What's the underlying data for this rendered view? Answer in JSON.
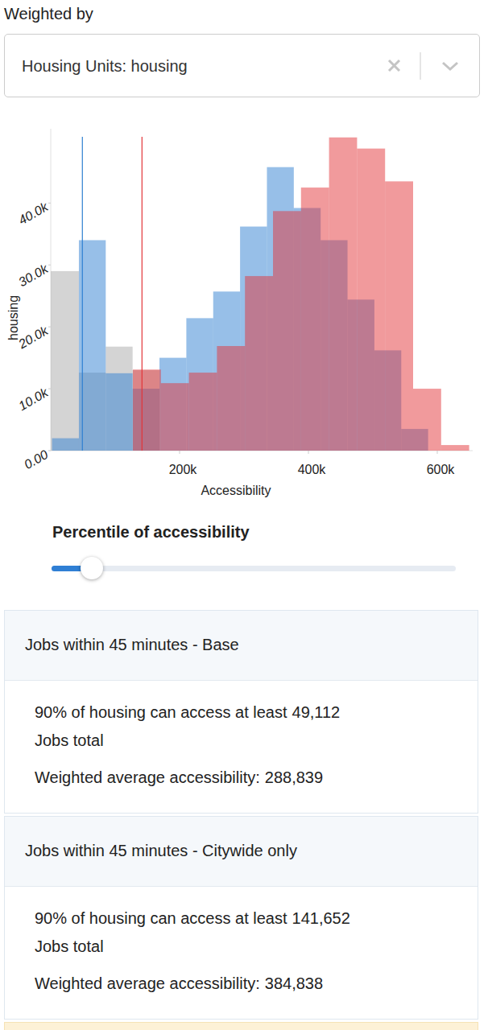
{
  "header": {
    "label": "Weighted by",
    "select": "Housing Units: housing"
  },
  "chart_data": {
    "type": "histogram",
    "x_label": "Accessibility",
    "y_label": "housing",
    "xlim": [
      0,
      655000
    ],
    "ylim": [
      0,
      52000
    ],
    "xticks": [
      {
        "value": 200000,
        "label": "200k"
      },
      {
        "value": 400000,
        "label": "400k"
      },
      {
        "value": 600000,
        "label": "600k"
      }
    ],
    "yticks": [
      {
        "value": 0,
        "label": "0.00"
      },
      {
        "value": 10000,
        "label": "10.0k"
      },
      {
        "value": 20000,
        "label": "20.0k"
      },
      {
        "value": 30000,
        "label": "30.0k"
      },
      {
        "value": 40000,
        "label": "40.0k"
      }
    ],
    "series": [
      {
        "color": "#2f80d1",
        "bins": [
          2000,
          43700,
          85400,
          127100,
          168800,
          210500,
          252200,
          293900,
          335600,
          377300,
          419000,
          460700,
          502400,
          544100,
          585800
        ],
        "values": [
          2000,
          34000,
          12500,
          10000,
          15000,
          21400,
          25700,
          36200,
          45800,
          39200,
          34000,
          24400,
          16200,
          3500
        ]
      },
      {
        "color": "#e33539",
        "bins": [
          127500,
          171000,
          214500,
          258000,
          301500,
          345000,
          388500,
          432000,
          475500,
          519000,
          562500,
          606000,
          649500
        ],
        "values": [
          13100,
          10900,
          12600,
          16900,
          28200,
          38700,
          42500,
          50600,
          48800,
          43500,
          10000,
          900
        ]
      },
      {
        "color": "#a9a9a9",
        "bins": [
          0,
          43700,
          85400,
          127100,
          168800
        ],
        "values": [
          29000,
          12600,
          16800,
          13000
        ]
      }
    ]
  },
  "slider": {
    "label": "Percentile of accessibility",
    "min": 0,
    "max": 100,
    "value": 10
  },
  "cards": [
    {
      "title": "Jobs within 45 minutes - Base",
      "text": "90% of housing can access at least",
      "value": 49112,
      "value_label": "49,112",
      "unit": "Jobs total",
      "average_text": "Weighted average accessibility:",
      "average": "288,839"
    },
    {
      "title": "Jobs within 45 minutes - Citywide only",
      "text": "90% of housing can access at least",
      "value": 141652,
      "value_label": "141,652",
      "unit": "Jobs total",
      "average_text": "Weighted average accessibility:",
      "average": "384,838"
    }
  ]
}
